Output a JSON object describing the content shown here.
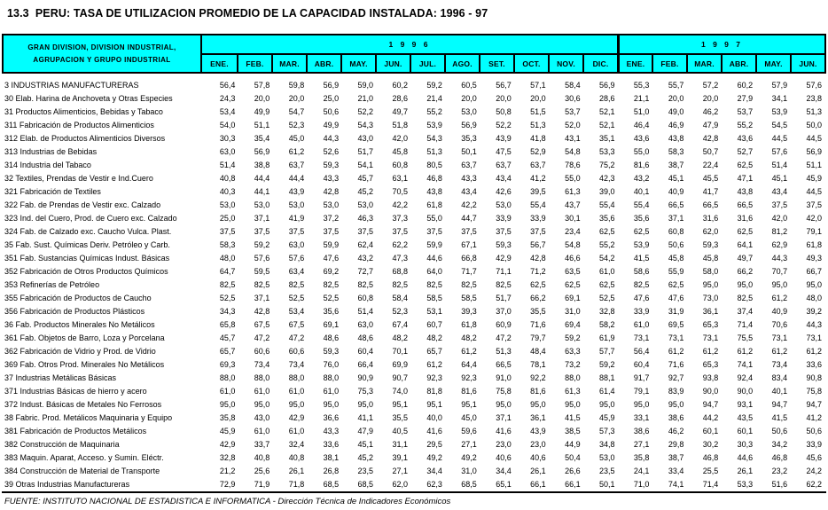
{
  "title": "13.3  PERU: TASA DE UTILIZACION PROMEDIO DE LA CAPACIDAD INSTALADA: 1996 - 97",
  "header": {
    "stub_line1": "GRAN DIVISION, DIVISION INDUSTRIAL,",
    "stub_line2": "AGRUPACION Y GRUPO INDUSTRIAL",
    "year_groups": [
      {
        "label": "1 9 9 6",
        "months": [
          "ENE.",
          "FEB.",
          "MAR.",
          "ABR.",
          "MAY.",
          "JUN.",
          "JUL.",
          "AGO.",
          "SET.",
          "OCT.",
          "NOV.",
          "DIC."
        ]
      },
      {
        "label": "1 9 9 7",
        "months": [
          "ENE.",
          "FEB.",
          "MAR.",
          "ABR.",
          "MAY.",
          "JUN."
        ]
      }
    ]
  },
  "colors": {
    "header_bg": "#00FFFF",
    "border": "#000000",
    "text": "#000000",
    "page_bg": "#FFFFFF"
  },
  "rows": [
    {
      "label": "3 INDUSTRIAS MANUFACTURERAS",
      "values": [
        "56,4",
        "57,8",
        "59,8",
        "56,9",
        "59,0",
        "60,2",
        "59,2",
        "60,5",
        "56,7",
        "57,1",
        "58,4",
        "56,9",
        "55,3",
        "55,7",
        "57,2",
        "60,2",
        "57,9",
        "57,6"
      ]
    },
    {
      "label": "30 Elab. Harina de Anchoveta y Otras Especies",
      "values": [
        "24,3",
        "20,0",
        "20,0",
        "25,0",
        "21,0",
        "28,6",
        "21,4",
        "20,0",
        "20,0",
        "20,0",
        "30,6",
        "28,6",
        "21,1",
        "20,0",
        "20,0",
        "27,9",
        "34,1",
        "23,8"
      ]
    },
    {
      "label": "31 Productos Alimenticios, Bebidas y Tabaco",
      "values": [
        "53,4",
        "49,9",
        "54,7",
        "50,6",
        "52,2",
        "49,7",
        "55,2",
        "53,0",
        "50,8",
        "51,5",
        "53,7",
        "52,1",
        "51,0",
        "49,0",
        "46,2",
        "53,7",
        "53,9",
        "51,3"
      ]
    },
    {
      "label": "311 Fabricación de Productos Alimenticios",
      "values": [
        "54,0",
        "51,1",
        "52,3",
        "49,9",
        "54,3",
        "51,8",
        "53,9",
        "56,9",
        "52,2",
        "51,3",
        "52,0",
        "52,1",
        "46,4",
        "46,9",
        "47,9",
        "55,2",
        "54,5",
        "50,0"
      ]
    },
    {
      "label": "312 Elab. de Productos Alimenticios Diversos",
      "values": [
        "30,3",
        "35,4",
        "45,0",
        "44,3",
        "43,0",
        "42,0",
        "54,3",
        "35,3",
        "43,9",
        "41,8",
        "43,1",
        "35,1",
        "43,6",
        "43,8",
        "42,8",
        "43,6",
        "44,5",
        "44,5"
      ]
    },
    {
      "label": "313 Industrias de Bebidas",
      "values": [
        "63,0",
        "56,9",
        "61,2",
        "52,6",
        "51,7",
        "45,8",
        "51,3",
        "50,1",
        "47,5",
        "52,9",
        "54,8",
        "53,3",
        "55,0",
        "58,3",
        "50,7",
        "52,7",
        "57,6",
        "56,9"
      ]
    },
    {
      "label": "314 Industria del Tabaco",
      "values": [
        "51,4",
        "38,8",
        "63,7",
        "59,3",
        "54,1",
        "60,8",
        "80,5",
        "63,7",
        "63,7",
        "63,7",
        "78,6",
        "75,2",
        "81,6",
        "38,7",
        "22,4",
        "62,5",
        "51,4",
        "51,1"
      ]
    },
    {
      "label": "32 Textiles, Prendas de Vestir e Ind.Cuero",
      "values": [
        "40,8",
        "44,4",
        "44,4",
        "43,3",
        "45,7",
        "63,1",
        "46,8",
        "43,3",
        "43,4",
        "41,2",
        "55,0",
        "42,3",
        "43,2",
        "45,1",
        "45,5",
        "47,1",
        "45,1",
        "45,9"
      ]
    },
    {
      "label": "321 Fabricación de Textiles",
      "values": [
        "40,3",
        "44,1",
        "43,9",
        "42,8",
        "45,2",
        "70,5",
        "43,8",
        "43,4",
        "42,6",
        "39,5",
        "61,3",
        "39,0",
        "40,1",
        "40,9",
        "41,7",
        "43,8",
        "43,4",
        "44,5"
      ]
    },
    {
      "label": "322 Fab. de Prendas de Vestir exc. Calzado",
      "values": [
        "53,0",
        "53,0",
        "53,0",
        "53,0",
        "53,0",
        "42,2",
        "61,8",
        "42,2",
        "53,0",
        "55,4",
        "43,7",
        "55,4",
        "55,4",
        "66,5",
        "66,5",
        "66,5",
        "37,5",
        "37,5"
      ]
    },
    {
      "label": "323 Ind. del Cuero, Prod. de Cuero exc. Calzado",
      "values": [
        "25,0",
        "37,1",
        "41,9",
        "37,2",
        "46,3",
        "37,3",
        "55,0",
        "44,7",
        "33,9",
        "33,9",
        "30,1",
        "35,6",
        "35,6",
        "37,1",
        "31,6",
        "31,6",
        "42,0",
        "42,0"
      ]
    },
    {
      "label": "324 Fab. de Calzado exc. Caucho Vulca. Plast.",
      "values": [
        "37,5",
        "37,5",
        "37,5",
        "37,5",
        "37,5",
        "37,5",
        "37,5",
        "37,5",
        "37,5",
        "37,5",
        "23,4",
        "62,5",
        "62,5",
        "60,8",
        "62,0",
        "62,5",
        "81,2",
        "79,1"
      ]
    },
    {
      "label": "35 Fab. Sust. Químicas Deriv. Petróleo y Carb.",
      "values": [
        "58,3",
        "59,2",
        "63,0",
        "59,9",
        "62,4",
        "62,2",
        "59,9",
        "67,1",
        "59,3",
        "56,7",
        "54,8",
        "55,2",
        "53,9",
        "50,6",
        "59,3",
        "64,1",
        "62,9",
        "61,8"
      ]
    },
    {
      "label": "351 Fab. Sustancias Químicas Indust. Básicas",
      "values": [
        "48,0",
        "57,6",
        "57,6",
        "47,6",
        "43,2",
        "47,3",
        "44,6",
        "66,8",
        "42,9",
        "42,8",
        "46,6",
        "54,2",
        "41,5",
        "45,8",
        "45,8",
        "49,7",
        "44,3",
        "49,3"
      ]
    },
    {
      "label": "352 Fabricación de Otros Productos Químicos",
      "values": [
        "64,7",
        "59,5",
        "63,4",
        "69,2",
        "72,7",
        "68,8",
        "64,0",
        "71,7",
        "71,1",
        "71,2",
        "63,5",
        "61,0",
        "58,6",
        "55,9",
        "58,0",
        "66,2",
        "70,7",
        "66,7"
      ]
    },
    {
      "label": "353 Refinerías de Petróleo",
      "values": [
        "82,5",
        "82,5",
        "82,5",
        "82,5",
        "82,5",
        "82,5",
        "82,5",
        "82,5",
        "82,5",
        "62,5",
        "62,5",
        "62,5",
        "82,5",
        "62,5",
        "95,0",
        "95,0",
        "95,0",
        "95,0"
      ]
    },
    {
      "label": "355 Fabricación de Productos de Caucho",
      "values": [
        "52,5",
        "37,1",
        "52,5",
        "52,5",
        "60,8",
        "58,4",
        "58,5",
        "58,5",
        "51,7",
        "66,2",
        "69,1",
        "52,5",
        "47,6",
        "47,6",
        "73,0",
        "82,5",
        "61,2",
        "48,0"
      ]
    },
    {
      "label": "356 Fabricación de Productos Plásticos",
      "values": [
        "34,3",
        "42,8",
        "53,4",
        "35,6",
        "51,4",
        "52,3",
        "53,1",
        "39,3",
        "37,0",
        "35,5",
        "31,0",
        "32,8",
        "33,9",
        "31,9",
        "36,1",
        "37,4",
        "40,9",
        "39,2"
      ]
    },
    {
      "label": "36 Fab. Productos Minerales No Metálicos",
      "values": [
        "65,8",
        "67,5",
        "67,5",
        "69,1",
        "63,0",
        "67,4",
        "60,7",
        "61,8",
        "60,9",
        "71,6",
        "69,4",
        "58,2",
        "61,0",
        "69,5",
        "65,3",
        "71,4",
        "70,6",
        "44,3"
      ]
    },
    {
      "label": "361 Fab. Objetos de Barro, Loza y Porcelana",
      "values": [
        "45,7",
        "47,2",
        "47,2",
        "48,6",
        "48,6",
        "48,2",
        "48,2",
        "48,2",
        "47,2",
        "79,7",
        "59,2",
        "61,9",
        "73,1",
        "73,1",
        "73,1",
        "75,5",
        "73,1",
        "73,1"
      ]
    },
    {
      "label": "362 Fabricación de Vidrio y Prod. de Vidrio",
      "values": [
        "65,7",
        "60,6",
        "60,6",
        "59,3",
        "60,4",
        "70,1",
        "65,7",
        "61,2",
        "51,3",
        "48,4",
        "63,3",
        "57,7",
        "56,4",
        "61,2",
        "61,2",
        "61,2",
        "61,2",
        "61,2"
      ]
    },
    {
      "label": "369 Fab. Otros Prod. Minerales No Metálicos",
      "values": [
        "69,3",
        "73,4",
        "73,4",
        "76,0",
        "66,4",
        "69,9",
        "61,2",
        "64,4",
        "66,5",
        "78,1",
        "73,2",
        "59,2",
        "60,4",
        "71,6",
        "65,3",
        "74,1",
        "73,4",
        "33,6"
      ]
    },
    {
      "label": "37 Industrias Metálicas Básicas",
      "values": [
        "88,0",
        "88,0",
        "88,0",
        "88,0",
        "90,9",
        "90,7",
        "92,3",
        "92,3",
        "91,0",
        "92,2",
        "88,0",
        "88,1",
        "91,7",
        "92,7",
        "93,8",
        "92,4",
        "83,4",
        "90,8"
      ]
    },
    {
      "label": "371 Industrias Básicas de hierro y acero",
      "values": [
        "61,0",
        "61,0",
        "61,0",
        "61,0",
        "75,3",
        "74,0",
        "81,8",
        "81,6",
        "75,8",
        "81,6",
        "61,3",
        "61,4",
        "79,1",
        "83,9",
        "90,0",
        "90,0",
        "40,1",
        "75,8"
      ]
    },
    {
      "label": "372 Indust. Básicas de Metales No Ferrosos",
      "values": [
        "95,0",
        "95,0",
        "95,0",
        "95,0",
        "95,0",
        "95,1",
        "95,1",
        "95,1",
        "95,0",
        "95,0",
        "95,0",
        "95,0",
        "95,0",
        "95,0",
        "94,7",
        "93,1",
        "94,7",
        "94,7"
      ]
    },
    {
      "label": "38 Fabric. Prod. Metálicos Maquinaria y Equipo",
      "values": [
        "35,8",
        "43,0",
        "42,9",
        "36,6",
        "41,1",
        "35,5",
        "40,0",
        "45,0",
        "37,1",
        "36,1",
        "41,5",
        "45,9",
        "33,1",
        "38,6",
        "44,2",
        "43,5",
        "41,5",
        "41,2"
      ]
    },
    {
      "label": "381 Fabricación de Productos Metálicos",
      "values": [
        "45,9",
        "61,0",
        "61,0",
        "43,3",
        "47,9",
        "40,5",
        "41,6",
        "59,6",
        "41,6",
        "43,9",
        "38,5",
        "57,3",
        "38,6",
        "46,2",
        "60,1",
        "60,1",
        "50,6",
        "50,6"
      ]
    },
    {
      "label": "382 Construcción de Maquinaria",
      "values": [
        "42,9",
        "33,7",
        "32,4",
        "33,6",
        "45,1",
        "31,1",
        "29,5",
        "27,1",
        "23,0",
        "23,0",
        "44,9",
        "34,8",
        "27,1",
        "29,8",
        "30,2",
        "30,3",
        "34,2",
        "33,9"
      ]
    },
    {
      "label": "383 Maquin. Aparat, Acceso. y Sumin. Eléctr.",
      "values": [
        "32,8",
        "40,8",
        "40,8",
        "38,1",
        "45,2",
        "39,1",
        "49,2",
        "49,2",
        "40,6",
        "40,6",
        "50,4",
        "53,0",
        "35,8",
        "38,7",
        "46,8",
        "44,6",
        "46,8",
        "45,6"
      ]
    },
    {
      "label": "384 Construcción de Material de Transporte",
      "values": [
        "21,2",
        "25,6",
        "26,1",
        "26,8",
        "23,5",
        "27,1",
        "34,4",
        "31,0",
        "34,4",
        "26,1",
        "26,6",
        "23,5",
        "24,1",
        "33,4",
        "25,5",
        "26,1",
        "23,2",
        "24,2"
      ]
    },
    {
      "label": "39 Otras Industrias Manufactureras",
      "values": [
        "72,9",
        "71,9",
        "71,8",
        "68,5",
        "68,5",
        "62,0",
        "62,3",
        "68,5",
        "65,1",
        "66,1",
        "66,1",
        "50,1",
        "71,0",
        "74,1",
        "71,4",
        "53,3",
        "51,6",
        "62,2"
      ]
    }
  ],
  "footer": "FUENTE: INSTITUTO NACIONAL DE ESTADISTICA E INFORMATICA - Dirección Técnica de Indicadores Económicos"
}
